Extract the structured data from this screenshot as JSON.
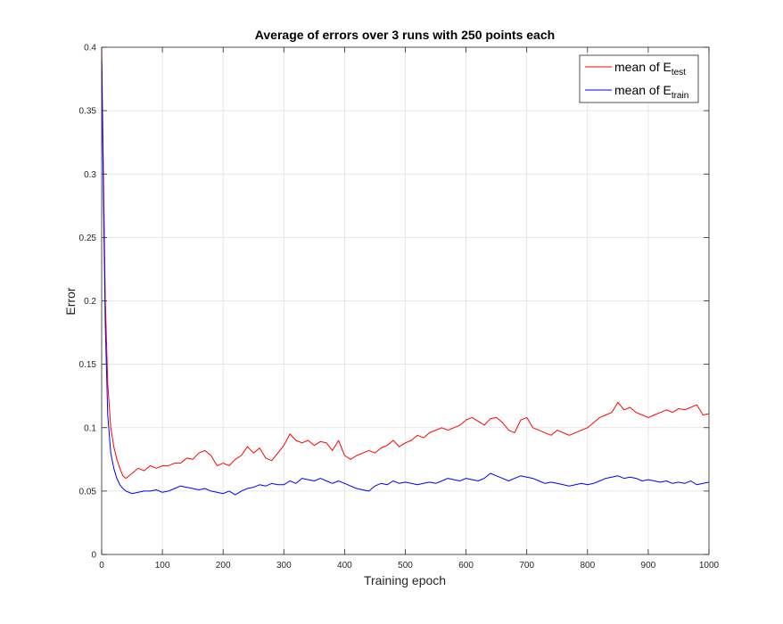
{
  "chart_data": {
    "type": "line",
    "title": "Average of errors over 3 runs with 250 points each",
    "xlabel": "Training epoch",
    "ylabel": "Error",
    "xlim": [
      0,
      1000
    ],
    "ylim": [
      0,
      0.4
    ],
    "xticks": [
      0,
      100,
      200,
      300,
      400,
      500,
      600,
      700,
      800,
      900,
      1000
    ],
    "yticks": [
      0,
      0.05,
      0.1,
      0.15,
      0.2,
      0.25,
      0.3,
      0.35,
      0.4
    ],
    "xtick_labels": [
      "0",
      "100",
      "200",
      "300",
      "400",
      "500",
      "600",
      "700",
      "800",
      "900",
      "1000"
    ],
    "ytick_labels": [
      "0",
      "0.05",
      "0.1",
      "0.15",
      "0.2",
      "0.25",
      "0.3",
      "0.35",
      "0.4"
    ],
    "grid": true,
    "legend_position": "top-right",
    "series": [
      {
        "name": "mean of E_test",
        "label_main": "mean of E",
        "label_sub": "test",
        "color": "#ff0000",
        "x": [
          0,
          3,
          6,
          10,
          15,
          20,
          25,
          30,
          35,
          40,
          50,
          60,
          70,
          80,
          90,
          100,
          110,
          120,
          130,
          140,
          150,
          160,
          170,
          180,
          190,
          200,
          210,
          220,
          230,
          240,
          250,
          260,
          270,
          280,
          290,
          300,
          310,
          320,
          330,
          340,
          350,
          360,
          370,
          380,
          390,
          400,
          410,
          420,
          430,
          440,
          450,
          460,
          470,
          480,
          490,
          500,
          510,
          520,
          530,
          540,
          550,
          560,
          570,
          580,
          590,
          600,
          610,
          620,
          630,
          640,
          650,
          660,
          670,
          680,
          690,
          700,
          710,
          720,
          730,
          740,
          750,
          760,
          770,
          780,
          790,
          800,
          810,
          820,
          830,
          840,
          850,
          860,
          870,
          880,
          890,
          900,
          910,
          920,
          930,
          940,
          950,
          960,
          970,
          980,
          990,
          1000
        ],
        "y": [
          0.4,
          0.3,
          0.2,
          0.135,
          0.1,
          0.085,
          0.075,
          0.068,
          0.062,
          0.06,
          0.064,
          0.068,
          0.066,
          0.07,
          0.068,
          0.07,
          0.07,
          0.072,
          0.072,
          0.076,
          0.075,
          0.08,
          0.082,
          0.078,
          0.07,
          0.072,
          0.07,
          0.075,
          0.078,
          0.085,
          0.08,
          0.084,
          0.076,
          0.074,
          0.08,
          0.086,
          0.095,
          0.09,
          0.088,
          0.09,
          0.086,
          0.089,
          0.088,
          0.082,
          0.09,
          0.078,
          0.075,
          0.078,
          0.08,
          0.082,
          0.08,
          0.084,
          0.086,
          0.09,
          0.085,
          0.088,
          0.09,
          0.094,
          0.092,
          0.096,
          0.098,
          0.1,
          0.098,
          0.1,
          0.102,
          0.106,
          0.108,
          0.105,
          0.102,
          0.107,
          0.108,
          0.104,
          0.098,
          0.096,
          0.106,
          0.108,
          0.1,
          0.098,
          0.096,
          0.094,
          0.098,
          0.096,
          0.094,
          0.096,
          0.098,
          0.1,
          0.104,
          0.108,
          0.11,
          0.112,
          0.12,
          0.114,
          0.116,
          0.112,
          0.11,
          0.108,
          0.11,
          0.112,
          0.114,
          0.112,
          0.115,
          0.114,
          0.116,
          0.118,
          0.11,
          0.111
        ]
      },
      {
        "name": "mean of E_train",
        "label_main": "mean of E",
        "label_sub": "train",
        "color": "#0000ff",
        "x": [
          0,
          3,
          6,
          10,
          15,
          20,
          25,
          30,
          35,
          40,
          50,
          60,
          70,
          80,
          90,
          100,
          110,
          120,
          130,
          140,
          150,
          160,
          170,
          180,
          190,
          200,
          210,
          220,
          230,
          240,
          250,
          260,
          270,
          280,
          290,
          300,
          310,
          320,
          330,
          340,
          350,
          360,
          370,
          380,
          390,
          400,
          410,
          420,
          430,
          440,
          450,
          460,
          470,
          480,
          490,
          500,
          510,
          520,
          530,
          540,
          550,
          560,
          570,
          580,
          590,
          600,
          610,
          620,
          630,
          640,
          650,
          660,
          670,
          680,
          690,
          700,
          710,
          720,
          730,
          740,
          750,
          760,
          770,
          780,
          790,
          800,
          810,
          820,
          830,
          840,
          850,
          860,
          870,
          880,
          890,
          900,
          910,
          920,
          930,
          940,
          950,
          960,
          970,
          980,
          990,
          1000
        ],
        "y": [
          0.39,
          0.28,
          0.18,
          0.11,
          0.08,
          0.068,
          0.06,
          0.055,
          0.052,
          0.05,
          0.048,
          0.049,
          0.05,
          0.05,
          0.051,
          0.049,
          0.05,
          0.052,
          0.054,
          0.053,
          0.052,
          0.051,
          0.052,
          0.05,
          0.049,
          0.048,
          0.05,
          0.047,
          0.05,
          0.052,
          0.053,
          0.055,
          0.054,
          0.056,
          0.055,
          0.055,
          0.058,
          0.056,
          0.06,
          0.059,
          0.058,
          0.06,
          0.058,
          0.056,
          0.058,
          0.056,
          0.054,
          0.052,
          0.051,
          0.05,
          0.054,
          0.056,
          0.055,
          0.058,
          0.056,
          0.057,
          0.056,
          0.055,
          0.056,
          0.057,
          0.056,
          0.058,
          0.06,
          0.059,
          0.058,
          0.06,
          0.059,
          0.058,
          0.06,
          0.064,
          0.062,
          0.06,
          0.058,
          0.06,
          0.062,
          0.061,
          0.06,
          0.058,
          0.056,
          0.057,
          0.056,
          0.055,
          0.054,
          0.055,
          0.056,
          0.055,
          0.056,
          0.058,
          0.06,
          0.061,
          0.062,
          0.06,
          0.061,
          0.06,
          0.058,
          0.059,
          0.058,
          0.057,
          0.058,
          0.056,
          0.057,
          0.056,
          0.058,
          0.055,
          0.056,
          0.057
        ]
      }
    ]
  }
}
